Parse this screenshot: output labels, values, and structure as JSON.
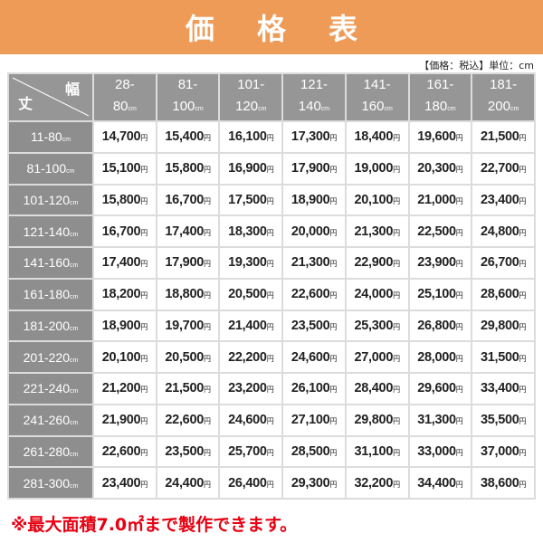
{
  "title": "価 格 表",
  "note": "【価格：税込】単位：cm",
  "corner": {
    "width_label": "幅",
    "height_label": "丈"
  },
  "unit_cm": "cm",
  "unit_yen": "円",
  "columns": [
    {
      "top": "28-",
      "bottom": "80"
    },
    {
      "top": "81-",
      "bottom": "100"
    },
    {
      "top": "101-",
      "bottom": "120"
    },
    {
      "top": "121-",
      "bottom": "140"
    },
    {
      "top": "141-",
      "bottom": "160"
    },
    {
      "top": "161-",
      "bottom": "180"
    },
    {
      "top": "181-",
      "bottom": "200"
    }
  ],
  "rows": [
    {
      "label": "11-80",
      "prices": [
        "14,700",
        "15,400",
        "16,100",
        "17,300",
        "18,400",
        "19,600",
        "21,500"
      ]
    },
    {
      "label": "81-100",
      "prices": [
        "15,100",
        "15,800",
        "16,900",
        "17,900",
        "19,000",
        "20,300",
        "22,700"
      ]
    },
    {
      "label": "101-120",
      "prices": [
        "15,800",
        "16,700",
        "17,500",
        "18,900",
        "20,100",
        "21,000",
        "23,400"
      ]
    },
    {
      "label": "121-140",
      "prices": [
        "16,700",
        "17,400",
        "18,300",
        "20,000",
        "21,300",
        "22,500",
        "24,800"
      ]
    },
    {
      "label": "141-160",
      "prices": [
        "17,400",
        "17,900",
        "19,300",
        "21,300",
        "22,900",
        "23,900",
        "26,700"
      ]
    },
    {
      "label": "161-180",
      "prices": [
        "18,200",
        "18,800",
        "20,500",
        "22,600",
        "24,000",
        "25,100",
        "28,600"
      ]
    },
    {
      "label": "181-200",
      "prices": [
        "18,900",
        "19,700",
        "21,400",
        "23,500",
        "25,300",
        "26,800",
        "29,800"
      ]
    },
    {
      "label": "201-220",
      "prices": [
        "20,100",
        "20,500",
        "22,200",
        "24,600",
        "27,000",
        "28,000",
        "31,500"
      ]
    },
    {
      "label": "221-240",
      "prices": [
        "21,200",
        "21,500",
        "23,200",
        "26,100",
        "28,400",
        "29,600",
        "33,400"
      ]
    },
    {
      "label": "241-260",
      "prices": [
        "21,900",
        "22,600",
        "24,600",
        "27,100",
        "29,800",
        "31,300",
        "35,500"
      ]
    },
    {
      "label": "261-280",
      "prices": [
        "22,600",
        "23,500",
        "25,700",
        "28,500",
        "31,100",
        "33,000",
        "37,000"
      ]
    },
    {
      "label": "281-300",
      "prices": [
        "23,400",
        "24,400",
        "26,400",
        "29,300",
        "32,200",
        "34,400",
        "38,600"
      ]
    }
  ],
  "footnote": "※最大面積7.0㎡まで製作できます。",
  "colors": {
    "banner": "#ee9b57",
    "header": "#969696",
    "footnote": "#e60012"
  }
}
